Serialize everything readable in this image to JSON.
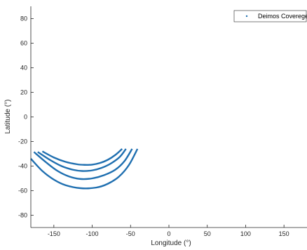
{
  "chart_data": {
    "type": "scatter",
    "title": "",
    "xlabel": "Longitude (°)",
    "ylabel": "Latitude (°)",
    "xlim": [
      -180,
      180
    ],
    "ylim": [
      -90,
      90
    ],
    "xticks": [
      -150,
      -100,
      -50,
      0,
      50,
      100,
      150
    ],
    "yticks": [
      -80,
      -60,
      -40,
      -20,
      0,
      20,
      40,
      60,
      80
    ],
    "grid": false,
    "legend": {
      "position": "top-right",
      "entries": [
        "Deimos Coverege"
      ]
    },
    "series": [
      {
        "name": "Deimos Coverege",
        "color": "#1f6fb0",
        "marker": "dot",
        "tracks": [
          {
            "x": [
              -165,
              -150,
              -135,
              -120,
              -110,
              -100,
              -90,
              -80,
              -70,
              -61
            ],
            "y": [
              -28,
              -33,
              -36.5,
              -38.5,
              -39,
              -38.8,
              -37.5,
              -35,
              -31,
              -26
            ]
          },
          {
            "x": [
              -171,
              -155,
              -140,
              -125,
              -113,
              -100,
              -88,
              -76,
              -64,
              -56
            ],
            "y": [
              -28.5,
              -35,
              -40,
              -43,
              -44,
              -43.5,
              -41.5,
              -38,
              -32.5,
              -26
            ]
          },
          {
            "x": [
              -176,
              -160,
              -145,
              -130,
              -115,
              -100,
              -85,
              -70,
              -58,
              -48
            ],
            "y": [
              -28.5,
              -37,
              -44,
              -48.5,
              -50.5,
              -50,
              -47.5,
              -43,
              -36,
              -26
            ]
          },
          {
            "x": [
              -180,
              -165,
              -150,
              -135,
              -115,
              -95,
              -80,
              -65,
              -52,
              -41
            ],
            "y": [
              -34,
              -44,
              -51,
              -55.5,
              -58,
              -57.5,
              -54.5,
              -48.5,
              -39,
              -26
            ]
          }
        ]
      }
    ]
  }
}
